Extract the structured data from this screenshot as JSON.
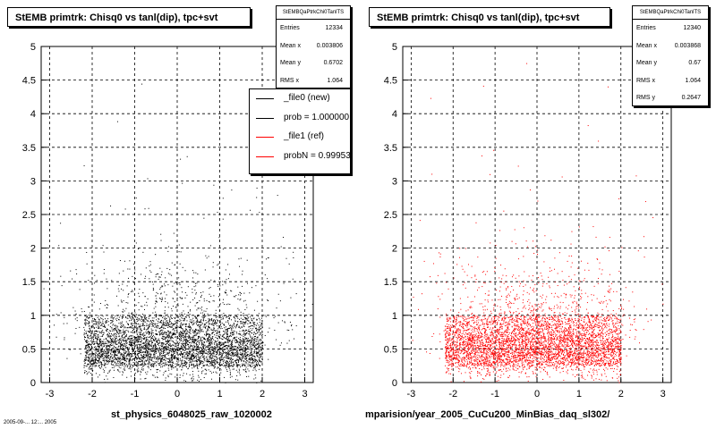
{
  "panels": [
    {
      "title": "StEMB primtrk: Chisq0 vs tanl(dip), tpc+svt",
      "stats": {
        "header": "StEMBQaPtrkChi0TanlTS",
        "rows": [
          {
            "label": "Entries",
            "value": "12334"
          },
          {
            "label": "Mean x",
            "value": "0.003806"
          },
          {
            "label": "Mean y",
            "value": "0.6702"
          },
          {
            "label": "RMS x",
            "value": "1.064"
          }
        ]
      },
      "legend": [
        {
          "label": "_file0 (new)",
          "color": "#000000"
        },
        {
          "label": "prob = 1.000000",
          "color": "#000000"
        },
        {
          "label": "_file1 (ref)",
          "color": "#ff0000"
        },
        {
          "label": "probN = 0.999531",
          "color": "#ff0000"
        }
      ],
      "footer": "st_physics_6048025_raw_1020002"
    },
    {
      "title": "StEMB primtrk: Chisq0 vs tanl(dip), tpc+svt",
      "stats": {
        "header": "StEMBQaPtrkChi0TanlTS",
        "rows": [
          {
            "label": "Entries",
            "value": "12340"
          },
          {
            "label": "Mean x",
            "value": "0.003868"
          },
          {
            "label": "Mean y",
            "value": "0.67"
          },
          {
            "label": "RMS x",
            "value": "1.064"
          },
          {
            "label": "RMS y",
            "value": "0.2647"
          }
        ]
      },
      "footer": "mparision/year_2005_CuCu200_MinBias_daq_sl302/"
    }
  ],
  "corner_text": "2005-09-... 12:... 2005",
  "chart_data": [
    {
      "type": "scatter",
      "title": "StEMB primtrk: Chisq0 vs tanl(dip), tpc+svt",
      "xlabel": "st_physics_6048025_raw_1020002",
      "ylabel": "",
      "xlim": [
        -3.2,
        3.2
      ],
      "ylim": [
        0,
        5
      ],
      "xticks": [
        -3,
        -2,
        -1,
        0,
        1,
        2,
        3
      ],
      "yticks": [
        0,
        0.5,
        1,
        1.5,
        2,
        2.5,
        3,
        3.5,
        4,
        4.5,
        5
      ],
      "grid": true,
      "series": [
        {
          "name": "_file0 (new)",
          "color": "#000000",
          "entries": 12334,
          "mean_x": 0.003806,
          "mean_y": 0.6702,
          "rms_x": 1.064
        }
      ],
      "density_region": {
        "x": [
          -2.2,
          2.0
        ],
        "y": [
          0.25,
          1.0
        ]
      },
      "legend_position": "top-right"
    },
    {
      "type": "scatter",
      "title": "StEMB primtrk: Chisq0 vs tanl(dip), tpc+svt",
      "xlabel": "mparision/year_2005_CuCu200_MinBias_daq_sl302/",
      "ylabel": "",
      "xlim": [
        -3.2,
        3.2
      ],
      "ylim": [
        0,
        5
      ],
      "xticks": [
        -3,
        -2,
        -1,
        0,
        1,
        2,
        3
      ],
      "yticks": [
        0,
        0.5,
        1,
        1.5,
        2,
        2.5,
        3,
        3.5,
        4,
        4.5,
        5
      ],
      "grid": true,
      "series": [
        {
          "name": "_file1 (ref)",
          "color": "#ff0000",
          "entries": 12340,
          "mean_x": 0.003868,
          "mean_y": 0.67,
          "rms_x": 1.064,
          "rms_y": 0.2647
        }
      ],
      "density_region": {
        "x": [
          -2.2,
          2.0
        ],
        "y": [
          0.25,
          1.0
        ]
      }
    }
  ]
}
